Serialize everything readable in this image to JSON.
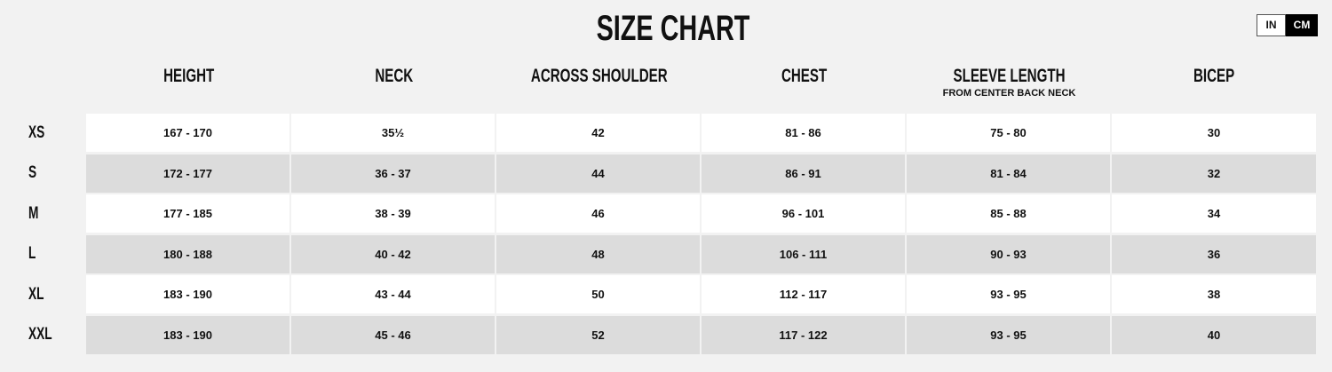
{
  "title": "SIZE CHART",
  "unit_toggle": {
    "options": [
      "IN",
      "CM"
    ],
    "selected": "CM"
  },
  "columns": [
    {
      "label": "HEIGHT",
      "sub": ""
    },
    {
      "label": "NECK",
      "sub": ""
    },
    {
      "label": "ACROSS SHOULDER",
      "sub": ""
    },
    {
      "label": "CHEST",
      "sub": ""
    },
    {
      "label": "SLEEVE LENGTH",
      "sub": "FROM CENTER BACK NECK"
    },
    {
      "label": "BICEP",
      "sub": ""
    }
  ],
  "rows": [
    {
      "size": "XS",
      "values": [
        "167 - 170",
        "35½",
        "42",
        "81 - 86",
        "75 - 80",
        "30"
      ]
    },
    {
      "size": "S",
      "values": [
        "172 - 177",
        "36 - 37",
        "44",
        "86 - 91",
        "81 - 84",
        "32"
      ]
    },
    {
      "size": "M",
      "values": [
        "177 - 185",
        "38 - 39",
        "46",
        "96 - 101",
        "85 - 88",
        "34"
      ]
    },
    {
      "size": "L",
      "values": [
        "180 - 188",
        "40 - 42",
        "48",
        "106 - 111",
        "90 - 93",
        "36"
      ]
    },
    {
      "size": "XL",
      "values": [
        "183 - 190",
        "43 - 44",
        "50",
        "112 - 117",
        "93 - 95",
        "38"
      ]
    },
    {
      "size": "XXL",
      "values": [
        "183 - 190",
        "45 - 46",
        "52",
        "117 - 122",
        "93 - 95",
        "40"
      ]
    }
  ]
}
